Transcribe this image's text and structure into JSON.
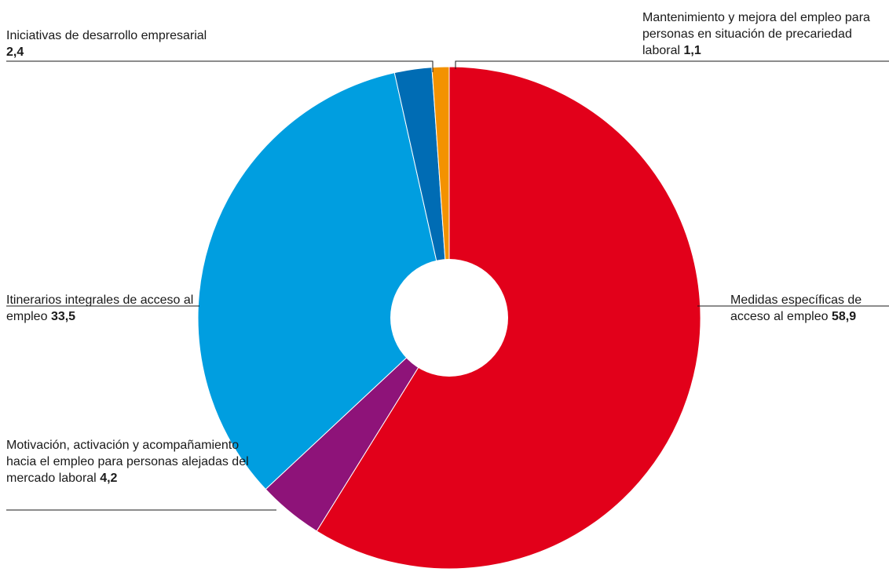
{
  "chart_data": {
    "type": "pie",
    "title": "",
    "donut": true,
    "categories": [
      "Medidas específicas de acceso al empleo",
      "Motivación, activación y acompañamiento hacia el empleo para personas alejadas del mercado laboral",
      "Itinerarios integrales de acceso al empleo",
      "Iniciativas de desarrollo empresarial",
      "Mantenimiento y mejora del empleo para personas en situación de precariedad laboral"
    ],
    "values": [
      58.9,
      4.2,
      33.5,
      2.4,
      1.1
    ],
    "value_labels": [
      "58,9",
      "4,2",
      "33,5",
      "2,4",
      "1,1"
    ],
    "colors": [
      "#e2001a",
      "#8e1379",
      "#009ee0",
      "#006cb4",
      "#f39200"
    ],
    "start_angle": "12 o'clock, clockwise",
    "legend": "none (direct labels with leader lines)"
  }
}
